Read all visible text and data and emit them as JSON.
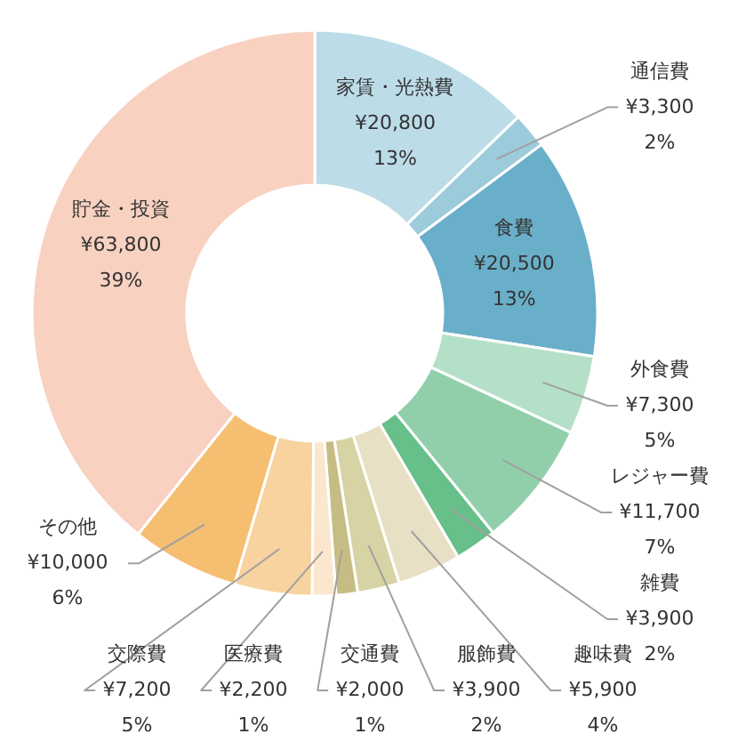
{
  "chart_data": {
    "type": "donut",
    "categories": [
      "家賃・光熱費",
      "通信費",
      "食費",
      "外食費",
      "レジャー費",
      "雑費",
      "趣味費",
      "服飾費",
      "交通費",
      "医療費",
      "交際費",
      "その他",
      "貯金・投資"
    ],
    "values": [
      20800,
      3300,
      20500,
      7300,
      11700,
      3900,
      5900,
      3900,
      2000,
      2200,
      7200,
      10000,
      63800
    ],
    "value_labels": [
      "¥20,800\n13%",
      "¥3,300\n2%",
      "¥20,500\n13%",
      "¥7,300\n5%",
      "¥11,700\n7%",
      "¥3,900\n2%",
      "¥5,900\n4%",
      "¥3,900\n2%",
      "¥2,000\n1%",
      "¥2,200\n1%",
      "¥7,200\n5%",
      "¥10,000\n6%",
      "¥63,800\n39%"
    ],
    "colors": [
      "#bcdce8",
      "#9ccbdc",
      "#6aafc9",
      "#b5e0c8",
      "#91cfaa",
      "#67bf8a",
      "#e8e0c4",
      "#d8d3a4",
      "#c6bd84",
      "#fbe7cd",
      "#f8d29f",
      "#f5be70",
      "#f8d1c0"
    ]
  }
}
